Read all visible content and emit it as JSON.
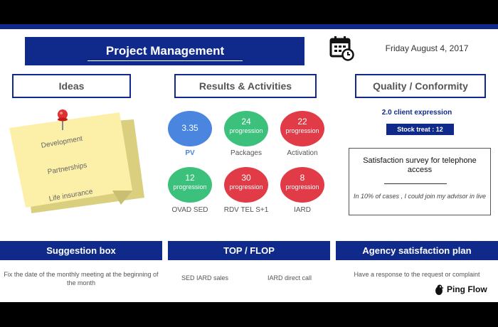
{
  "header": {
    "title": "Project Management",
    "date": "Friday August 4, 2017"
  },
  "sections": {
    "ideas": "Ideas",
    "results": "Results & Activities",
    "quality": "Quality / Conformity"
  },
  "ideas_note": {
    "items": [
      "Development",
      "Partnerships",
      "Life insurance"
    ]
  },
  "metrics": [
    {
      "value": "3.35",
      "sub": "",
      "label": "PV",
      "color": "#4a86e0"
    },
    {
      "value": "24",
      "sub": "progression",
      "label": "Packages",
      "color": "#3cc17d"
    },
    {
      "value": "22",
      "sub": "progression",
      "label": "Activation",
      "color": "#e13b47"
    },
    {
      "value": "12",
      "sub": "progression",
      "label": "OVAD SED",
      "color": "#3cc17d"
    },
    {
      "value": "30",
      "sub": "progression",
      "label": "RDV TEL S+1",
      "color": "#e13b47"
    },
    {
      "value": "8",
      "sub": "progression",
      "label": "IARD",
      "color": "#e13b47"
    }
  ],
  "quality": {
    "client_expression": "2.0 client expression",
    "stock_treat": "Stock treat : 12",
    "survey_title": "Satisfaction survey for telephone access",
    "survey_text": "In 10% of cases , I could join my advisor in live"
  },
  "bottom": {
    "suggestion_title": "Suggestion box",
    "suggestion_text": "Fix the date of the monthly meeting at the beginning of the month",
    "topflop_title": "TOP / FLOP",
    "top_item": "SED IARD sales",
    "flop_item": "IARD direct call",
    "agency_title": "Agency satisfaction plan",
    "agency_text": "Have a response to the request or complaint"
  },
  "brand": {
    "name": "Ping Flow"
  },
  "colors": {
    "navy": "#102a8c",
    "blue": "#4a86e0",
    "green": "#3cc17d",
    "red": "#e13b47"
  }
}
